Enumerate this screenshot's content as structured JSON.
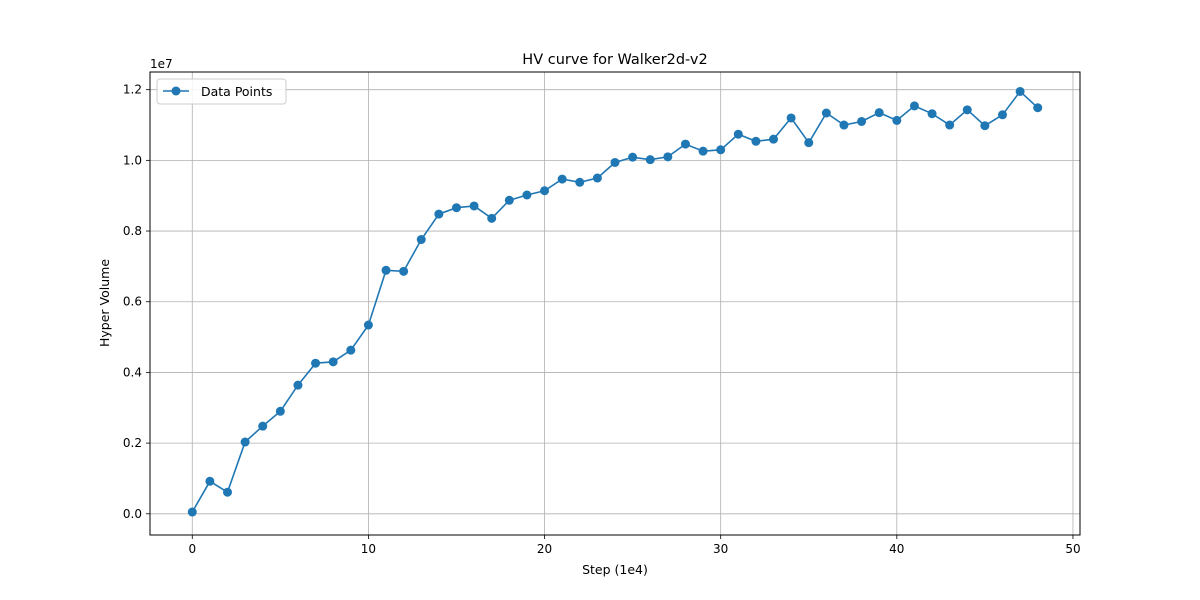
{
  "chart_data": {
    "type": "line",
    "title": "HV curve for Walker2d-v2",
    "xlabel": "Step (1e4)",
    "ylabel": "Hyper Volume",
    "y_offset_label": "1e7",
    "xlim": [
      -2.4,
      50.4
    ],
    "ylim": [
      -0.06,
      1.25
    ],
    "xticks": [
      0,
      10,
      20,
      30,
      40,
      50
    ],
    "yticks": [
      0.0,
      0.2,
      0.4,
      0.6,
      0.8,
      1.0,
      1.2
    ],
    "xtick_labels": [
      "0",
      "10",
      "20",
      "30",
      "40",
      "50"
    ],
    "ytick_labels": [
      "0.0",
      "0.2",
      "0.4",
      "0.6",
      "0.8",
      "1.0",
      "1.2"
    ],
    "grid": true,
    "legend_position": "top-left",
    "series": [
      {
        "name": "Data Points",
        "color": "#1f77b4",
        "marker": "circle",
        "x": [
          0,
          1,
          2,
          3,
          4,
          5,
          6,
          7,
          8,
          9,
          10,
          11,
          12,
          13,
          14,
          15,
          16,
          17,
          18,
          19,
          20,
          21,
          22,
          23,
          24,
          25,
          26,
          27,
          28,
          29,
          30,
          31,
          32,
          33,
          34,
          35,
          36,
          37,
          38,
          39,
          40,
          41,
          42,
          43,
          44,
          45,
          46,
          47,
          48
        ],
        "y": [
          0.005,
          0.092,
          0.061,
          0.203,
          0.248,
          0.29,
          0.364,
          0.426,
          0.43,
          0.463,
          0.534,
          0.689,
          0.686,
          0.776,
          0.848,
          0.866,
          0.871,
          0.836,
          0.887,
          0.902,
          0.914,
          0.947,
          0.938,
          0.95,
          0.994,
          1.009,
          1.002,
          1.01,
          1.046,
          1.026,
          1.03,
          1.074,
          1.054,
          1.06,
          1.12,
          1.05,
          1.134,
          1.1,
          1.11,
          1.135,
          1.113,
          1.154,
          1.132,
          1.1,
          1.143,
          1.098,
          1.129,
          1.195,
          1.149
        ]
      }
    ]
  }
}
